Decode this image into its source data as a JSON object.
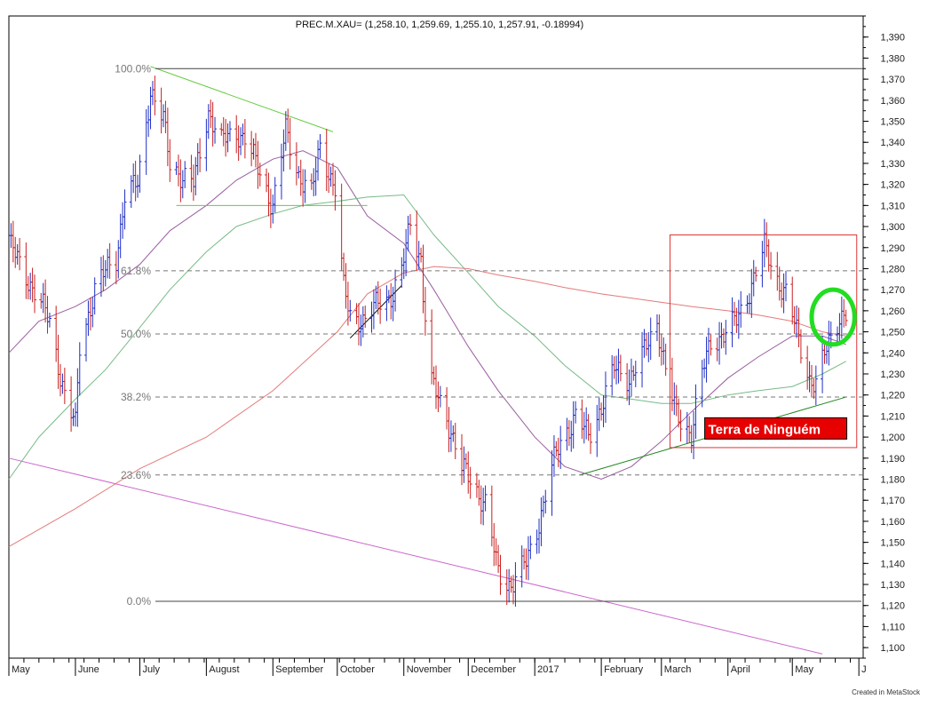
{
  "chart_data": {
    "type": "ohlc",
    "title": "PREC.M.XAU= (1,258.10, 1,259.69, 1,255.10, 1,257.91, -0.18994)",
    "credit": "Created in MetaStock",
    "ylim": [
      1095,
      1400
    ],
    "yticks": [
      1100,
      1110,
      1120,
      1130,
      1140,
      1150,
      1160,
      1170,
      1180,
      1190,
      1200,
      1210,
      1220,
      1230,
      1240,
      1250,
      1260,
      1270,
      1280,
      1290,
      1300,
      1310,
      1320,
      1330,
      1340,
      1350,
      1360,
      1370,
      1380,
      1390
    ],
    "xlim": [
      "2016-05-01",
      "2017-06-03"
    ],
    "month_ticks": [
      {
        "date": "2016-05-01",
        "label": "May"
      },
      {
        "date": "2016-06-01",
        "label": "June"
      },
      {
        "date": "2016-07-01",
        "label": "July"
      },
      {
        "date": "2016-08-01",
        "label": "August"
      },
      {
        "date": "2016-09-01",
        "label": "September"
      },
      {
        "date": "2016-10-01",
        "label": "October"
      },
      {
        "date": "2016-11-01",
        "label": "November"
      },
      {
        "date": "2016-12-01",
        "label": "December"
      },
      {
        "date": "2017-01-01",
        "label": "2017"
      },
      {
        "date": "2017-02-01",
        "label": "February"
      },
      {
        "date": "2017-03-01",
        "label": "March"
      },
      {
        "date": "2017-04-01",
        "label": "April"
      },
      {
        "date": "2017-05-01",
        "label": "May"
      },
      {
        "date": "2017-06-01",
        "label": "J"
      }
    ],
    "fib_levels": [
      {
        "label": "100.0%",
        "value": 1375,
        "style": "solid"
      },
      {
        "label": "61.8%",
        "value": 1279,
        "style": "dashed"
      },
      {
        "label": "50.0%",
        "value": 1249,
        "style": "dashed"
      },
      {
        "label": "38.2%",
        "value": 1219,
        "style": "dashed"
      },
      {
        "label": "23.6%",
        "value": 1182,
        "style": "dashed"
      },
      {
        "label": "0.0%",
        "value": 1122,
        "style": "solid"
      }
    ],
    "price_anchors": [
      [
        "2016-05-02",
        1290
      ],
      [
        "2016-05-10",
        1275
      ],
      [
        "2016-05-20",
        1255
      ],
      [
        "2016-05-27",
        1220
      ],
      [
        "2016-06-01",
        1205
      ],
      [
        "2016-06-03",
        1243
      ],
      [
        "2016-06-10",
        1270
      ],
      [
        "2016-06-16",
        1280
      ],
      [
        "2016-06-20",
        1285
      ],
      [
        "2016-06-24",
        1315
      ],
      [
        "2016-06-30",
        1320
      ],
      [
        "2016-07-06",
        1365
      ],
      [
        "2016-07-12",
        1350
      ],
      [
        "2016-07-15",
        1330
      ],
      [
        "2016-07-20",
        1325
      ],
      [
        "2016-07-26",
        1320
      ],
      [
        "2016-08-02",
        1355
      ],
      [
        "2016-08-08",
        1340
      ],
      [
        "2016-08-15",
        1345
      ],
      [
        "2016-08-19",
        1342
      ],
      [
        "2016-08-26",
        1325
      ],
      [
        "2016-09-01",
        1310
      ],
      [
        "2016-09-07",
        1345
      ],
      [
        "2016-09-13",
        1325
      ],
      [
        "2016-09-19",
        1315
      ],
      [
        "2016-09-23",
        1338
      ],
      [
        "2016-09-30",
        1318
      ],
      [
        "2016-10-04",
        1270
      ],
      [
        "2016-10-07",
        1258
      ],
      [
        "2016-10-14",
        1255
      ],
      [
        "2016-10-21",
        1265
      ],
      [
        "2016-10-27",
        1268
      ],
      [
        "2016-10-31",
        1278
      ],
      [
        "2016-11-04",
        1302
      ],
      [
        "2016-11-09",
        1285
      ],
      [
        "2016-11-10",
        1268
      ],
      [
        "2016-11-14",
        1225
      ],
      [
        "2016-11-21",
        1210
      ],
      [
        "2016-11-28",
        1185
      ],
      [
        "2016-12-02",
        1180
      ],
      [
        "2016-12-09",
        1168
      ],
      [
        "2016-12-15",
        1135
      ],
      [
        "2016-12-21",
        1130
      ],
      [
        "2016-12-28",
        1140
      ],
      [
        "2017-01-03",
        1160
      ],
      [
        "2017-01-09",
        1185
      ],
      [
        "2017-01-13",
        1198
      ],
      [
        "2017-01-20",
        1210
      ],
      [
        "2017-01-26",
        1200
      ],
      [
        "2017-02-01",
        1215
      ],
      [
        "2017-02-07",
        1232
      ],
      [
        "2017-02-14",
        1228
      ],
      [
        "2017-02-21",
        1240
      ],
      [
        "2017-02-27",
        1255
      ],
      [
        "2017-03-03",
        1232
      ],
      [
        "2017-03-08",
        1210
      ],
      [
        "2017-03-15",
        1202
      ],
      [
        "2017-03-20",
        1230
      ],
      [
        "2017-03-24",
        1245
      ],
      [
        "2017-03-31",
        1250
      ],
      [
        "2017-04-05",
        1255
      ],
      [
        "2017-04-11",
        1270
      ],
      [
        "2017-04-18",
        1290
      ],
      [
        "2017-04-24",
        1275
      ],
      [
        "2017-04-28",
        1268
      ],
      [
        "2017-05-03",
        1250
      ],
      [
        "2017-05-09",
        1228
      ],
      [
        "2017-05-12",
        1225
      ],
      [
        "2017-05-18",
        1245
      ],
      [
        "2017-05-23",
        1258
      ],
      [
        "2017-05-26",
        1258
      ]
    ],
    "moving_averages": [
      {
        "color": "#9a5ea0",
        "points": [
          [
            "2016-05-01",
            1240
          ],
          [
            "2016-05-15",
            1255
          ],
          [
            "2016-06-01",
            1262
          ],
          [
            "2016-06-15",
            1270
          ],
          [
            "2016-07-01",
            1282
          ],
          [
            "2016-07-15",
            1298
          ],
          [
            "2016-08-01",
            1310
          ],
          [
            "2016-08-15",
            1322
          ],
          [
            "2016-09-01",
            1332
          ],
          [
            "2016-09-15",
            1336
          ],
          [
            "2016-10-01",
            1328
          ],
          [
            "2016-10-15",
            1305
          ],
          [
            "2016-11-01",
            1292
          ],
          [
            "2016-11-15",
            1270
          ],
          [
            "2016-12-01",
            1243
          ],
          [
            "2016-12-15",
            1222
          ],
          [
            "2017-01-01",
            1200
          ],
          [
            "2017-01-15",
            1186
          ],
          [
            "2017-02-01",
            1180
          ],
          [
            "2017-02-15",
            1186
          ],
          [
            "2017-03-01",
            1198
          ],
          [
            "2017-03-15",
            1212
          ],
          [
            "2017-04-01",
            1228
          ],
          [
            "2017-04-15",
            1238
          ],
          [
            "2017-05-01",
            1248
          ],
          [
            "2017-05-15",
            1248
          ],
          [
            "2017-05-26",
            1244
          ]
        ]
      },
      {
        "color": "#77bb88",
        "points": [
          [
            "2016-05-01",
            1180
          ],
          [
            "2016-05-15",
            1200
          ],
          [
            "2016-06-01",
            1218
          ],
          [
            "2016-06-15",
            1232
          ],
          [
            "2016-07-01",
            1252
          ],
          [
            "2016-07-15",
            1270
          ],
          [
            "2016-08-01",
            1288
          ],
          [
            "2016-08-15",
            1300
          ],
          [
            "2016-09-01",
            1306
          ],
          [
            "2016-09-15",
            1310
          ],
          [
            "2016-10-01",
            1312
          ],
          [
            "2016-10-15",
            1314
          ],
          [
            "2016-11-01",
            1315
          ],
          [
            "2016-11-15",
            1296
          ],
          [
            "2016-12-01",
            1278
          ],
          [
            "2016-12-15",
            1262
          ],
          [
            "2017-01-01",
            1248
          ],
          [
            "2017-01-15",
            1234
          ],
          [
            "2017-02-01",
            1220
          ],
          [
            "2017-02-15",
            1218
          ],
          [
            "2017-03-01",
            1216
          ],
          [
            "2017-03-15",
            1216
          ],
          [
            "2017-04-01",
            1220
          ],
          [
            "2017-04-15",
            1222
          ],
          [
            "2017-05-01",
            1224
          ],
          [
            "2017-05-15",
            1230
          ],
          [
            "2017-05-26",
            1236
          ]
        ]
      },
      {
        "color": "#e47a7a",
        "points": [
          [
            "2016-05-01",
            1148
          ],
          [
            "2016-06-01",
            1166
          ],
          [
            "2016-07-01",
            1185
          ],
          [
            "2016-08-01",
            1200
          ],
          [
            "2016-09-01",
            1222
          ],
          [
            "2016-10-01",
            1250
          ],
          [
            "2016-10-15",
            1268
          ],
          [
            "2016-11-01",
            1278
          ],
          [
            "2016-11-15",
            1281
          ],
          [
            "2016-12-01",
            1280
          ],
          [
            "2016-12-15",
            1277
          ],
          [
            "2017-01-01",
            1274
          ],
          [
            "2017-01-15",
            1271
          ],
          [
            "2017-02-01",
            1268
          ],
          [
            "2017-02-15",
            1266
          ],
          [
            "2017-03-01",
            1264
          ],
          [
            "2017-03-15",
            1262
          ],
          [
            "2017-04-01",
            1260
          ],
          [
            "2017-04-15",
            1258
          ],
          [
            "2017-05-01",
            1255
          ],
          [
            "2017-05-15",
            1250
          ],
          [
            "2017-05-26",
            1248
          ]
        ]
      }
    ],
    "trendlines": [
      {
        "color": "#cc66cc",
        "start": [
          "2016-05-01",
          1190
        ],
        "end": [
          "2017-05-15",
          1097
        ]
      },
      {
        "color": "#66cc44",
        "start": [
          "2016-07-06",
          1376
        ],
        "end": [
          "2016-09-29",
          1345
        ]
      },
      {
        "color": "#66cc44",
        "start": [
          "2016-07-18",
          1310
        ],
        "end": [
          "2016-10-15",
          1310
        ]
      },
      {
        "color": "#000000",
        "start": [
          "2016-10-07",
          1247
        ],
        "end": [
          "2016-10-31",
          1272
        ]
      },
      {
        "color": "#228822",
        "start": [
          "2017-01-22",
          1182
        ],
        "end": [
          "2017-05-26",
          1219
        ]
      }
    ],
    "annotations": {
      "box": {
        "x1": "2017-03-05",
        "y1": 1296,
        "x2": "2017-05-31",
        "y2": 1195,
        "color": "#e03333"
      },
      "label": {
        "text": "Terra de Ninguém",
        "x": "2017-03-22",
        "y": 1202,
        "bg": "#e60000",
        "color": "#ffffff"
      },
      "circle": {
        "cx": "2017-05-20",
        "cy": 1257,
        "rx_days": 10,
        "ry_value": 13,
        "color": "#22dd22"
      }
    },
    "colors": {
      "up": "#1f2fc4",
      "down": "#c82020",
      "grid_dash": "#777777"
    }
  }
}
